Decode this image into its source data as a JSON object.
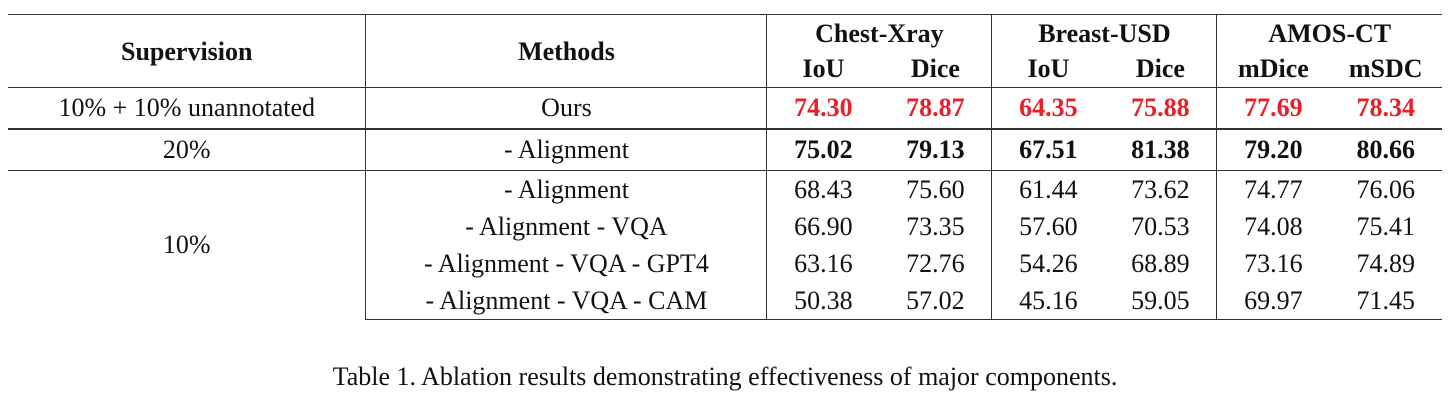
{
  "table": {
    "headers": {
      "supervision": "Supervision",
      "methods": "Methods",
      "datasets": [
        {
          "name": "Chest-Xray",
          "metrics": [
            "IoU",
            "Dice"
          ]
        },
        {
          "name": "Breast-USD",
          "metrics": [
            "IoU",
            "Dice"
          ]
        },
        {
          "name": "AMOS-CT",
          "metrics": [
            "mDice",
            "mSDC"
          ]
        }
      ]
    },
    "rows": [
      {
        "supervision": "10% + 10% unannotated",
        "method": "Ours",
        "values": [
          "74.30",
          "78.87",
          "64.35",
          "75.88",
          "77.69",
          "78.34"
        ],
        "style": "red"
      },
      {
        "supervision": "20%",
        "method": "- Alignment",
        "values": [
          "75.02",
          "79.13",
          "67.51",
          "81.38",
          "79.20",
          "80.66"
        ],
        "style": "bold"
      },
      {
        "supervision": "10%",
        "method": "- Alignment",
        "values": [
          "68.43",
          "75.60",
          "61.44",
          "73.62",
          "74.77",
          "76.06"
        ],
        "style": "normal"
      },
      {
        "supervision": "",
        "method": "- Alignment - VQA",
        "values": [
          "66.90",
          "73.35",
          "57.60",
          "70.53",
          "74.08",
          "75.41"
        ],
        "style": "normal"
      },
      {
        "supervision": "",
        "method": "- Alignment - VQA - GPT4",
        "values": [
          "63.16",
          "72.76",
          "54.26",
          "68.89",
          "73.16",
          "74.89"
        ],
        "style": "normal"
      },
      {
        "supervision": "",
        "method": "- Alignment - VQA - CAM",
        "values": [
          "50.38",
          "57.02",
          "45.16",
          "59.05",
          "69.97",
          "71.45"
        ],
        "style": "normal"
      }
    ]
  },
  "caption": "Table 1. Ablation results demonstrating effectiveness of major components.",
  "colors": {
    "highlight": "#e8202a",
    "text": "#111111",
    "rule": "#333333"
  }
}
